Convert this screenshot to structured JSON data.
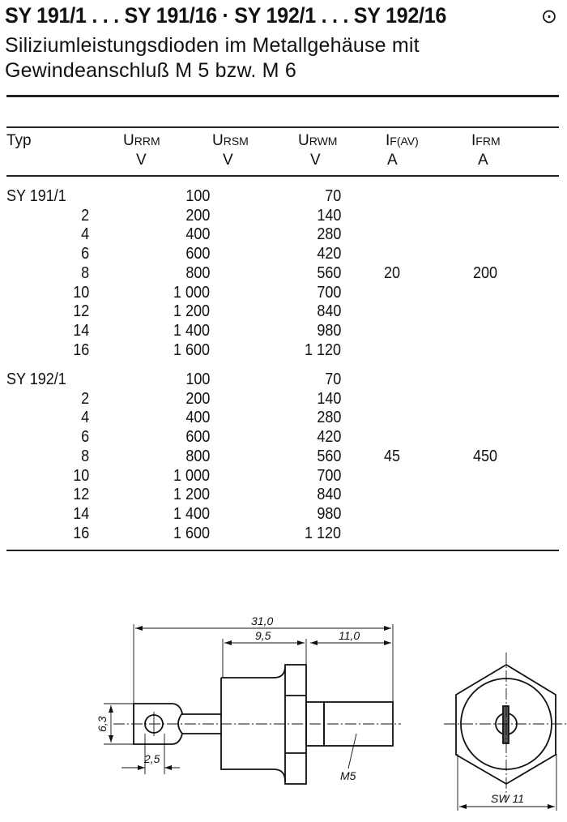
{
  "header": {
    "title": "SY 191/1 . . . SY 191/16 · SY 192/1 . . . SY 192/16",
    "symbol": "⊙",
    "subtitle_line1": "Siliziumleistungsdioden im Metallgehäuse mit",
    "subtitle_line2": "Gewindeanschluß M 5 bzw. M 6"
  },
  "table": {
    "columns": [
      {
        "label": "Typ",
        "sub": "",
        "unit": ""
      },
      {
        "label": "U",
        "sub": "RRM",
        "unit": "V"
      },
      {
        "label": "U",
        "sub": "RSM",
        "unit": "V"
      },
      {
        "label": "U",
        "sub": "RWM",
        "unit": "V"
      },
      {
        "label": "I",
        "sub": "F(AV)",
        "unit": "A"
      },
      {
        "label": "I",
        "sub": "FRM",
        "unit": "A"
      }
    ],
    "groups": [
      {
        "rows": [
          {
            "typ": "SY 191/1",
            "urrm": "100",
            "urwm": "70"
          },
          {
            "typ": "2",
            "urrm": "200",
            "urwm": "140"
          },
          {
            "typ": "4",
            "urrm": "400",
            "urwm": "280"
          },
          {
            "typ": "6",
            "urrm": "600",
            "urwm": "420"
          },
          {
            "typ": "8",
            "urrm": "800",
            "urwm": "560"
          },
          {
            "typ": "10",
            "urrm": "1 000",
            "urwm": "700"
          },
          {
            "typ": "12",
            "urrm": "1 200",
            "urwm": "840"
          },
          {
            "typ": "14",
            "urrm": "1 400",
            "urwm": "980"
          },
          {
            "typ": "16",
            "urrm": "1 600",
            "urwm": "1 120"
          }
        ],
        "if_av": "20",
        "ifrm": "200"
      },
      {
        "rows": [
          {
            "typ": "SY 192/1",
            "urrm": "100",
            "urwm": "70"
          },
          {
            "typ": "2",
            "urrm": "200",
            "urwm": "140"
          },
          {
            "typ": "4",
            "urrm": "400",
            "urwm": "280"
          },
          {
            "typ": "6",
            "urrm": "600",
            "urwm": "420"
          },
          {
            "typ": "8",
            "urrm": "800",
            "urwm": "560"
          },
          {
            "typ": "10",
            "urrm": "1 000",
            "urwm": "700"
          },
          {
            "typ": "12",
            "urrm": "1 200",
            "urwm": "840"
          },
          {
            "typ": "14",
            "urrm": "1 400",
            "urwm": "980"
          },
          {
            "typ": "16",
            "urrm": "1 600",
            "urwm": "1 120"
          }
        ],
        "if_av": "45",
        "ifrm": "450"
      }
    ]
  },
  "drawing": {
    "dim_total": "31,0",
    "dim_body": "9,5",
    "dim_thread": "11,0",
    "dim_lug_height": "6,3",
    "dim_hole": "2,5",
    "thread_label": "M5",
    "wrench_label": "SW 11"
  }
}
